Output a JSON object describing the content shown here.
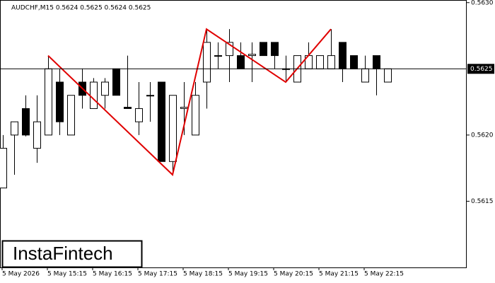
{
  "chart_data": {
    "type": "candlestick",
    "title": "AUDCHF,M15  0.5624 0.5625 0.5624 0.5625",
    "watermark": "InstaFintech",
    "categories": [
      "5 May 2026",
      null,
      null,
      null,
      "5 May 15:15",
      null,
      null,
      null,
      "5 May 16:15",
      null,
      null,
      null,
      "5 May 17:15",
      null,
      null,
      null,
      "5 May 18:15",
      null,
      null,
      null,
      "5 May 19:15",
      null,
      null,
      null,
      "5 May 20:15",
      null,
      null,
      null,
      "5 May 21:15",
      null,
      null,
      null,
      "5 May 22:15",
      null,
      null
    ],
    "open": [
      0.5616,
      0.562,
      0.5622,
      0.5619,
      0.562,
      0.5624,
      0.562,
      0.5624,
      0.5622,
      0.5623,
      0.5625,
      0.56221,
      0.5621,
      0.5623,
      0.5624,
      0.5618,
      0.5622,
      0.562,
      0.5624,
      0.5626,
      0.5626,
      0.5626,
      0.5626,
      0.5627,
      0.5627,
      0.5625,
      0.5624,
      0.5625,
      0.5625,
      0.5625,
      0.5627,
      0.5626,
      0.5624,
      0.5626,
      0.5624
    ],
    "high": [
      0.562,
      0.5621,
      0.5623,
      0.5623,
      0.5626,
      0.5625,
      0.5623,
      0.5625,
      0.56243,
      0.56243,
      0.5625,
      0.5626,
      0.5624,
      0.5624,
      0.5624,
      0.5623,
      0.5624,
      0.5624,
      0.5628,
      0.5627,
      0.5628,
      0.5627,
      0.5627,
      0.5627,
      0.5627,
      0.5626,
      0.5626,
      0.5627,
      0.5626,
      0.5628,
      0.5627,
      0.5626,
      0.5626,
      0.5626,
      0.5625
    ],
    "low": [
      0.5616,
      0.5617,
      0.56199,
      0.56179,
      0.562,
      0.562,
      0.562,
      0.5622,
      0.5622,
      0.5622,
      0.5623,
      0.5622,
      0.562,
      0.5621,
      0.5618,
      0.5617,
      0.562,
      0.562,
      0.5622,
      0.5625,
      0.5624,
      0.5625,
      0.5624,
      0.5626,
      0.5625,
      0.5624,
      0.5624,
      0.5625,
      0.5625,
      0.5625,
      0.5624,
      0.5625,
      0.5624,
      0.5623,
      0.5624
    ],
    "close": [
      0.5619,
      0.5621,
      0.562,
      0.5621,
      0.5625,
      0.5621,
      0.5623,
      0.5623,
      0.5624,
      0.5624,
      0.5623,
      0.5622,
      0.5622,
      0.5623,
      0.5618,
      0.5623,
      0.56221,
      0.5623,
      0.5627,
      0.5626,
      0.5627,
      0.5625,
      0.56261,
      0.5626,
      0.5626,
      0.5625,
      0.5626,
      0.5626,
      0.5626,
      0.5626,
      0.5625,
      0.5625,
      0.5625,
      0.5625,
      0.5625
    ],
    "up_color": "#ffffff",
    "down_color": "#000000",
    "pattern": {
      "color": "#e00000",
      "x": [
        4,
        15,
        18,
        25,
        29
      ],
      "values": [
        0.5626,
        0.5617,
        0.5628,
        0.5624,
        0.5628
      ]
    },
    "current_price": {
      "value": 0.5625,
      "label": "0.5625"
    },
    "ylim": [
      0.561,
      0.56302
    ],
    "yticks": [
      {
        "value": 0.563,
        "label": "0.5630"
      },
      {
        "value": 0.562,
        "label": "0.5620"
      },
      {
        "value": 0.5615,
        "label": "0.5615"
      }
    ]
  }
}
